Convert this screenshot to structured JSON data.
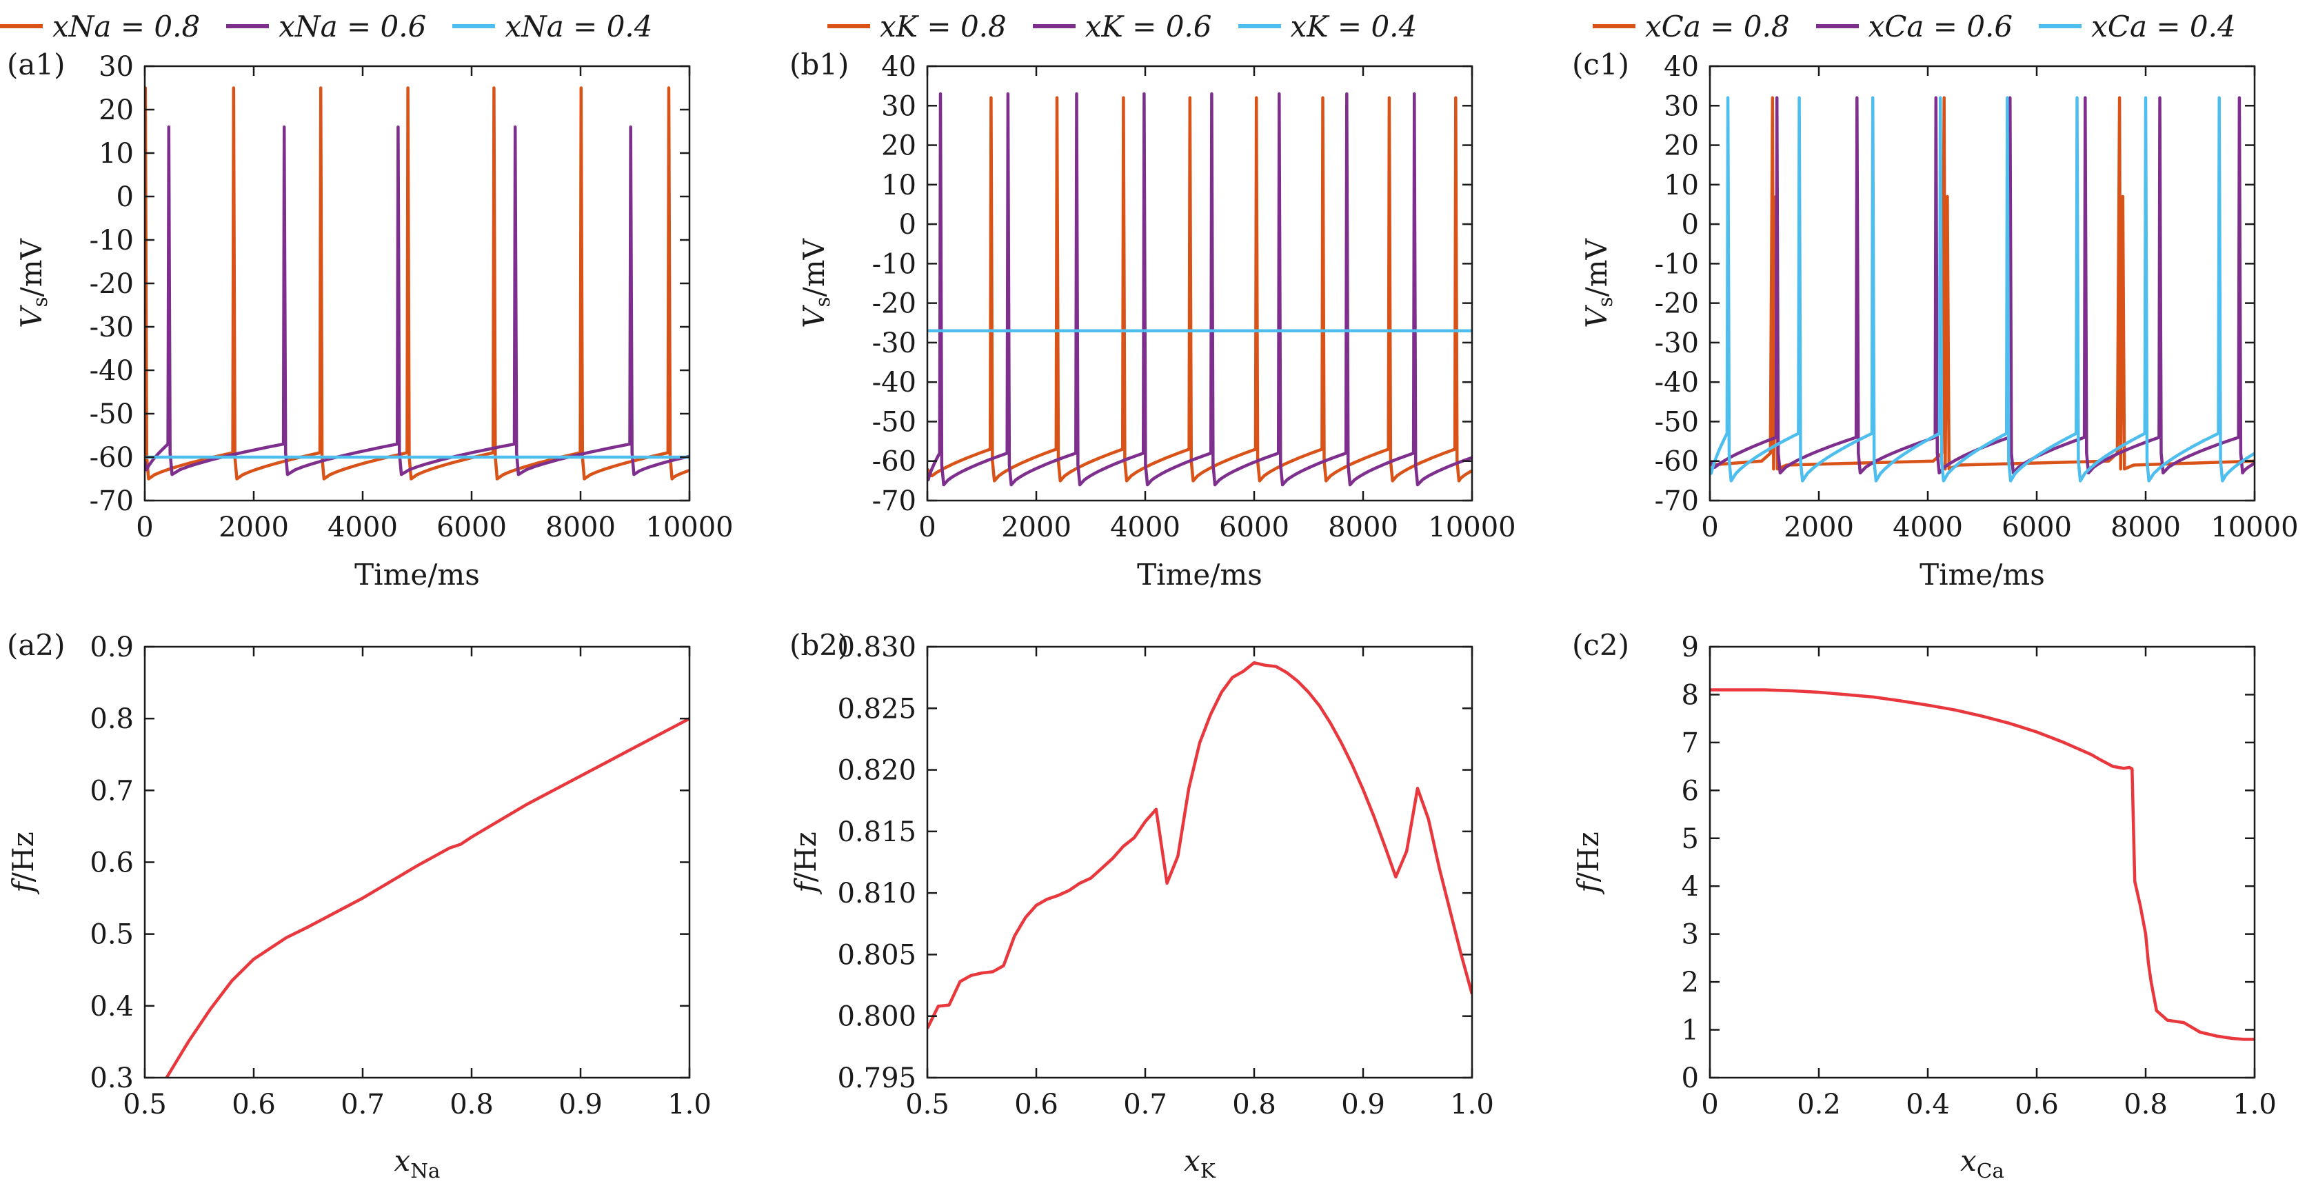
{
  "chart_data": [
    {
      "id": "a1",
      "type": "line",
      "panel_label": "(a1)",
      "xlabel": "Time/ms",
      "ylabel": "Vs/mV",
      "xlim": [
        0,
        10000
      ],
      "ylim": [
        -70,
        30
      ],
      "xticks": [
        0,
        2000,
        4000,
        6000,
        8000,
        10000
      ],
      "yticks": [
        -70,
        -60,
        -50,
        -40,
        -30,
        -20,
        -10,
        0,
        10,
        20,
        30
      ],
      "legend_position": "top",
      "series": [
        {
          "name": "xNa = 0.8",
          "legend_text": "xNa = 0.8",
          "color": "#d95319",
          "kind": "spikes",
          "spikes": [
            10,
            1630,
            3230,
            4830,
            6410,
            8010,
            9620
          ],
          "peak": 25,
          "after_spike": -65,
          "pre_spike": -59
        },
        {
          "name": "xNa = 0.6",
          "legend_text": "xNa = 0.6",
          "color": "#7e2f8e",
          "kind": "spikes",
          "spikes": [
            440,
            2560,
            4650,
            6800,
            8920
          ],
          "peak": 16,
          "after_spike": -64,
          "pre_spike": -57
        },
        {
          "name": "xNa = 0.4",
          "legend_text": "xNa = 0.4",
          "color": "#4dbeee",
          "kind": "flat",
          "value": -60
        }
      ]
    },
    {
      "id": "b1",
      "type": "line",
      "panel_label": "(b1)",
      "xlabel": "Time/ms",
      "ylabel": "Vs/mV",
      "xlim": [
        0,
        10000
      ],
      "ylim": [
        -70,
        40
      ],
      "xticks": [
        0,
        2000,
        4000,
        6000,
        8000,
        10000
      ],
      "yticks": [
        -70,
        -60,
        -50,
        -40,
        -30,
        -20,
        -10,
        0,
        10,
        20,
        30,
        40
      ],
      "legend_position": "top",
      "series": [
        {
          "name": "xK = 0.8",
          "legend_text": "xK = 0.8",
          "color": "#d95319",
          "kind": "spikes",
          "spikes": [
            1170,
            2380,
            3600,
            4820,
            6040,
            7260,
            8480,
            9700
          ],
          "peak": 32,
          "after_spike": -65,
          "pre_spike": -57
        },
        {
          "name": "xK = 0.6",
          "legend_text": "xK = 0.6",
          "color": "#7e2f8e",
          "kind": "spikes",
          "spikes": [
            240,
            1480,
            2740,
            3980,
            5220,
            6460,
            7700,
            8940
          ],
          "peak": 33,
          "after_spike": -66,
          "pre_spike": -58
        },
        {
          "name": "xK = 0.4",
          "legend_text": "xK = 0.4",
          "color": "#4dbeee",
          "kind": "flat",
          "value": -27
        }
      ]
    },
    {
      "id": "c1",
      "type": "line",
      "panel_label": "(c1)",
      "xlabel": "Time/ms",
      "ylabel": "Vs/mV",
      "xlim": [
        0,
        10000
      ],
      "ylim": [
        -70,
        40
      ],
      "xticks": [
        0,
        2000,
        4000,
        6000,
        8000,
        10000
      ],
      "yticks": [
        -70,
        -60,
        -50,
        -40,
        -30,
        -20,
        -10,
        0,
        10,
        20,
        30,
        40
      ],
      "legend_position": "top",
      "series": [
        {
          "name": "xCa = 0.8",
          "legend_text": "xCa = 0.8",
          "color": "#d95319",
          "kind": "bursts",
          "bursts": [
            1150,
            4300,
            7520
          ],
          "peak": 32,
          "second_peak": 7,
          "after_spike": -62,
          "baseline": -61
        },
        {
          "name": "xCa = 0.6",
          "legend_text": "xCa = 0.6",
          "color": "#7e2f8e",
          "kind": "spikes",
          "spikes": [
            1230,
            2700,
            4150,
            5510,
            6890,
            8260,
            9720
          ],
          "peak": 32,
          "after_spike": -63,
          "pre_spike": -54
        },
        {
          "name": "xCa = 0.4",
          "legend_text": "xCa = 0.4",
          "color": "#4dbeee",
          "kind": "spikes",
          "spikes": [
            330,
            1640,
            2990,
            4230,
            5460,
            6740,
            8000,
            9350
          ],
          "peak": 32,
          "after_spike": -65,
          "pre_spike": -53
        }
      ]
    },
    {
      "id": "a2",
      "type": "line",
      "panel_label": "(a2)",
      "xlabel": "xNa",
      "ylabel": "f/Hz",
      "xlim": [
        0.5,
        1.0
      ],
      "ylim": [
        0.3,
        0.9
      ],
      "xticks": [
        "0.5",
        "0.6",
        "0.7",
        "0.8",
        "0.9",
        "1.0"
      ],
      "yticks": [
        "0.3",
        "0.4",
        "0.5",
        "0.6",
        "0.7",
        "0.8",
        "0.9"
      ],
      "series": [
        {
          "name": "f",
          "color": "#e8383d",
          "x": [
            0.52,
            0.54,
            0.56,
            0.58,
            0.6,
            0.62,
            0.63,
            0.65,
            0.7,
            0.75,
            0.78,
            0.79,
            0.8,
            0.85,
            0.9,
            0.95,
            1.0
          ],
          "y": [
            0.3,
            0.35,
            0.395,
            0.435,
            0.465,
            0.485,
            0.495,
            0.51,
            0.55,
            0.595,
            0.62,
            0.625,
            0.635,
            0.68,
            0.72,
            0.76,
            0.8
          ]
        }
      ]
    },
    {
      "id": "b2",
      "type": "line",
      "panel_label": "(b2)",
      "xlabel": "xK",
      "ylabel": "f/Hz",
      "xlim": [
        0.5,
        1.0
      ],
      "ylim": [
        0.795,
        0.83
      ],
      "xticks": [
        "0.5",
        "0.6",
        "0.7",
        "0.8",
        "0.9",
        "1.0"
      ],
      "yticks": [
        "0.795",
        "0.800",
        "0.805",
        "0.810",
        "0.815",
        "0.820",
        "0.825",
        "0.830"
      ],
      "series": [
        {
          "name": "f",
          "color": "#e8383d",
          "x": [
            0.5,
            0.51,
            0.52,
            0.53,
            0.54,
            0.55,
            0.56,
            0.57,
            0.58,
            0.59,
            0.6,
            0.61,
            0.62,
            0.63,
            0.64,
            0.65,
            0.66,
            0.67,
            0.68,
            0.69,
            0.7,
            0.71,
            0.72,
            0.73,
            0.74,
            0.75,
            0.76,
            0.77,
            0.78,
            0.79,
            0.8,
            0.81,
            0.82,
            0.83,
            0.84,
            0.85,
            0.86,
            0.87,
            0.88,
            0.89,
            0.9,
            0.91,
            0.92,
            0.93,
            0.94,
            0.95,
            0.96,
            0.97,
            0.98,
            0.99,
            1.0
          ],
          "y": [
            0.799,
            0.8008,
            0.8009,
            0.8028,
            0.8033,
            0.8035,
            0.8036,
            0.8041,
            0.8065,
            0.808,
            0.809,
            0.8095,
            0.8098,
            0.8102,
            0.8108,
            0.8112,
            0.812,
            0.8128,
            0.8138,
            0.8145,
            0.8158,
            0.8168,
            0.8108,
            0.813,
            0.8185,
            0.8222,
            0.8245,
            0.8263,
            0.8275,
            0.828,
            0.8287,
            0.8285,
            0.8284,
            0.8279,
            0.8272,
            0.8263,
            0.8252,
            0.8238,
            0.8222,
            0.8204,
            0.8184,
            0.8162,
            0.8138,
            0.8113,
            0.8134,
            0.8185,
            0.816,
            0.812,
            0.8085,
            0.805,
            0.8018
          ]
        }
      ]
    },
    {
      "id": "c2",
      "type": "line",
      "panel_label": "(c2)",
      "xlabel": "xCa",
      "ylabel": "f/Hz",
      "xlim": [
        0,
        1.0
      ],
      "ylim": [
        0,
        9
      ],
      "xticks": [
        "0",
        "0.2",
        "0.4",
        "0.6",
        "0.8",
        "1.0"
      ],
      "yticks": [
        "0",
        "1",
        "2",
        "3",
        "4",
        "5",
        "6",
        "7",
        "8",
        "9"
      ],
      "series": [
        {
          "name": "f",
          "color": "#e8383d",
          "x": [
            0,
            0.05,
            0.1,
            0.15,
            0.2,
            0.25,
            0.3,
            0.35,
            0.4,
            0.45,
            0.5,
            0.55,
            0.6,
            0.65,
            0.7,
            0.72,
            0.74,
            0.76,
            0.77,
            0.775,
            0.78,
            0.79,
            0.8,
            0.805,
            0.81,
            0.82,
            0.84,
            0.87,
            0.9,
            0.93,
            0.96,
            0.98,
            1.0
          ],
          "y": [
            8.1,
            8.1,
            8.1,
            8.08,
            8.05,
            8.0,
            7.95,
            7.87,
            7.78,
            7.68,
            7.55,
            7.4,
            7.22,
            7.0,
            6.75,
            6.62,
            6.5,
            6.46,
            6.48,
            6.45,
            4.1,
            3.6,
            3.0,
            2.4,
            2.0,
            1.4,
            1.2,
            1.15,
            0.95,
            0.87,
            0.82,
            0.8,
            0.8
          ]
        }
      ]
    }
  ]
}
